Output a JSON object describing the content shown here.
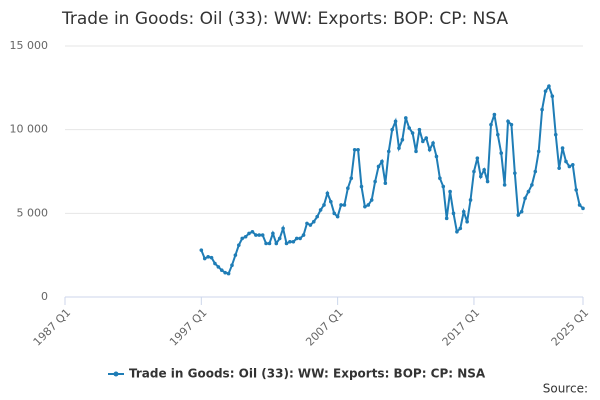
{
  "chart_data": {
    "type": "line",
    "title": "Trade in Goods: Oil (33): WW: Exports: BOP: CP: NSA",
    "categories": [
      "1987 Q1",
      null,
      null,
      null,
      null,
      null,
      null,
      null,
      null,
      null,
      null,
      null,
      null,
      null,
      null,
      null,
      null,
      null,
      null,
      null,
      null,
      null,
      null,
      null,
      null,
      null,
      null,
      null,
      null,
      null,
      null,
      null,
      null,
      null,
      null,
      null,
      null,
      null,
      null,
      null,
      "1997 Q1",
      null,
      null,
      null,
      null,
      null,
      null,
      null,
      null,
      null,
      null,
      null,
      null,
      null,
      null,
      null,
      null,
      null,
      null,
      null,
      null,
      null,
      null,
      null,
      null,
      null,
      null,
      null,
      null,
      null,
      null,
      null,
      null,
      null,
      null,
      null,
      null,
      null,
      null,
      null,
      "2007 Q1",
      null,
      null,
      null,
      null,
      null,
      null,
      null,
      null,
      null,
      null,
      null,
      null,
      null,
      null,
      null,
      null,
      null,
      null,
      null,
      null,
      null,
      null,
      null,
      null,
      null,
      null,
      null,
      null,
      null,
      null,
      null,
      null,
      null,
      null,
      null,
      null,
      null,
      null,
      null,
      "2017 Q1",
      null,
      null,
      null,
      null,
      null,
      null,
      null,
      null,
      null,
      null,
      null,
      null,
      null,
      null,
      null,
      null,
      null,
      null,
      null,
      null,
      null,
      null,
      null,
      null,
      null,
      null,
      null,
      null,
      null,
      null,
      null,
      "2025 Q1"
    ],
    "series": [
      {
        "name": "Trade in Goods: Oil (33): WW: Exports: BOP: CP: NSA",
        "color": "#1f7db6",
        "values": [
          null,
          null,
          null,
          null,
          null,
          null,
          null,
          null,
          null,
          null,
          null,
          null,
          null,
          null,
          null,
          null,
          null,
          null,
          null,
          null,
          null,
          null,
          null,
          null,
          null,
          null,
          null,
          null,
          null,
          null,
          null,
          null,
          null,
          null,
          null,
          null,
          null,
          null,
          null,
          null,
          2800,
          2300,
          2400,
          2350,
          2000,
          1800,
          1600,
          1450,
          1400,
          1900,
          2500,
          3100,
          3500,
          3600,
          3800,
          3900,
          3700,
          3700,
          3700,
          3200,
          3200,
          3800,
          3200,
          3500,
          4100,
          3200,
          3300,
          3300,
          3500,
          3500,
          3700,
          4400,
          4300,
          4500,
          4800,
          5200,
          5500,
          6200,
          5700,
          5000,
          4800,
          5500,
          5500,
          6500,
          7100,
          8800,
          8800,
          6600,
          5400,
          5500,
          5800,
          6900,
          7800,
          8100,
          6800,
          8700,
          10000,
          10500,
          8900,
          9400,
          10700,
          10100,
          9800,
          8700,
          10000,
          9300,
          9500,
          8800,
          9200,
          8400,
          7100,
          6600,
          4700,
          6300,
          5000,
          3900,
          4100,
          5100,
          4500,
          5800,
          7500,
          8300,
          7200,
          7600,
          6900,
          10300,
          10900,
          9700,
          8600,
          6700,
          10500,
          10300,
          7400,
          4900,
          5100,
          5900,
          6300,
          6700,
          7500,
          8700,
          11200,
          12300,
          12600,
          12000,
          9700,
          7700,
          8900,
          8100,
          7800,
          7900,
          6400,
          5500,
          5300
        ]
      }
    ],
    "ylim": [
      0,
      15000
    ],
    "yticks": [
      0,
      {
        "value": 5000,
        "label": "5 000"
      },
      {
        "value": 10000,
        "label": "10 000"
      },
      {
        "value": 15000,
        "label": "15 000"
      }
    ],
    "grid": true,
    "legend": "bottom",
    "source": "Source:"
  }
}
